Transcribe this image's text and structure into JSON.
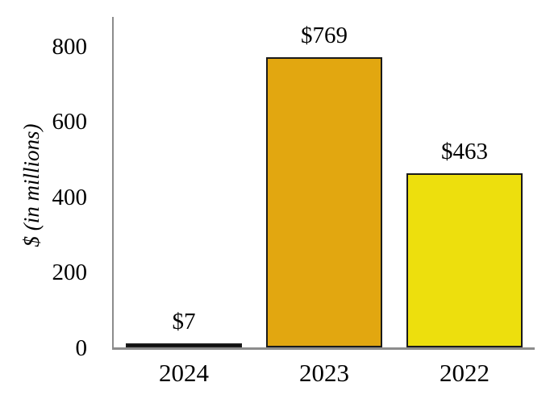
{
  "figure": {
    "background": "#ffffff",
    "axis_color": "#8C8C8C"
  },
  "chart_data": {
    "type": "bar",
    "categories": [
      "2024",
      "2023",
      "2022"
    ],
    "values": [
      7,
      769,
      463
    ],
    "bar_labels": [
      "$7",
      "$769",
      "$463"
    ],
    "bar_colors": [
      "#0a0a0a",
      "#E2A710",
      "#EDDF0D"
    ],
    "bar_border_color": "#1a1a1a",
    "title": "",
    "xlabel": "",
    "ylabel": "$ (in millions)",
    "yticks": [
      0,
      200,
      400,
      600,
      800
    ],
    "ylim": [
      0,
      880
    ],
    "grid": false,
    "legend": "none"
  }
}
